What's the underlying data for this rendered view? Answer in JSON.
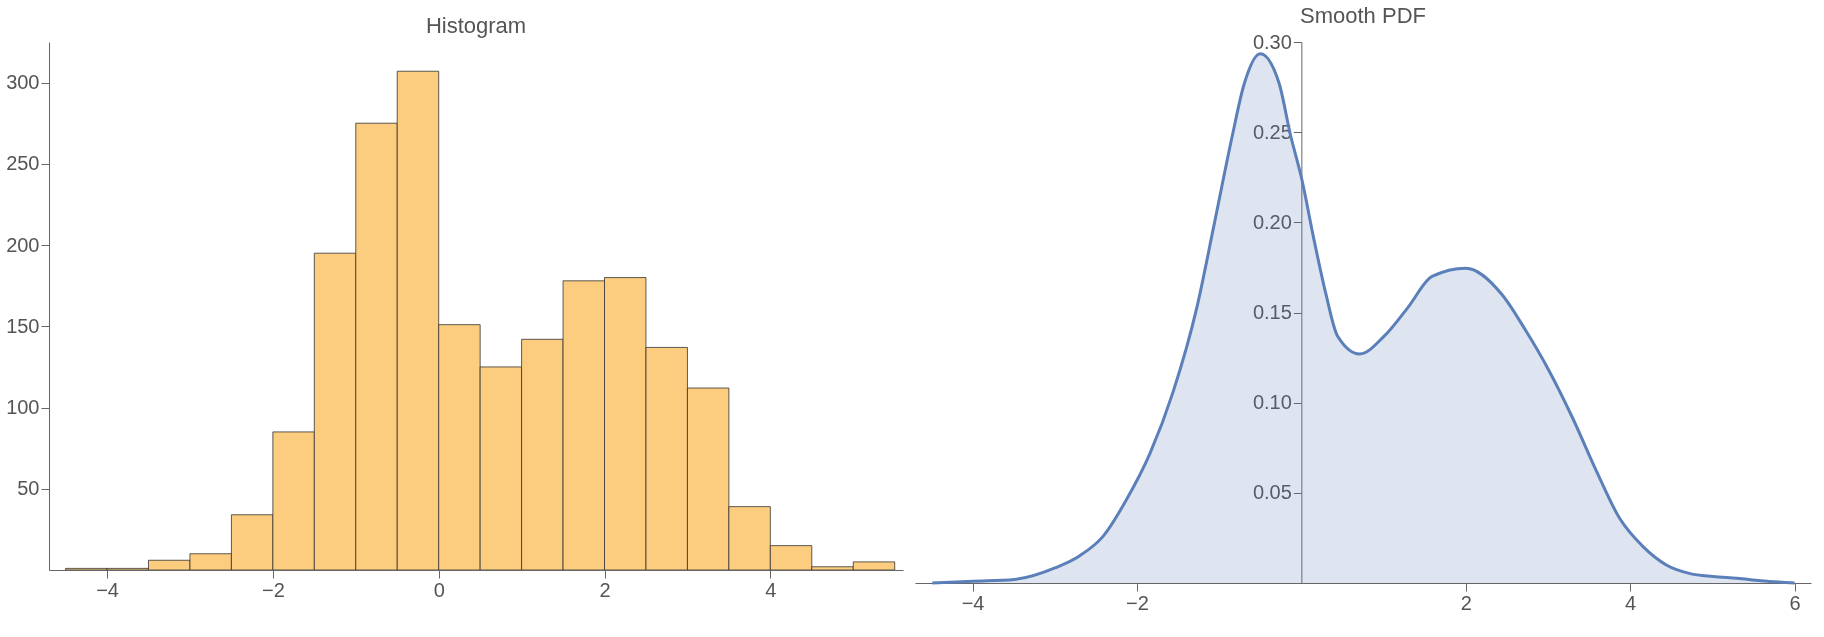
{
  "chart_data": [
    {
      "type": "histogram",
      "title": "Histogram",
      "bins": [
        -4.5,
        -4,
        -3.5,
        -3,
        -2.5,
        -2,
        -1.5,
        -1,
        -0.5,
        0,
        0.5,
        1,
        1.5,
        2,
        2.5,
        3,
        3.5,
        4,
        4.5,
        5,
        5.5
      ],
      "values": [
        1,
        1,
        6,
        10,
        34,
        85,
        195,
        275,
        307,
        151,
        125,
        142,
        178,
        180,
        137,
        112,
        39,
        15,
        2,
        5
      ],
      "color": "#fccd7e",
      "xlim": [
        -4.7,
        5.6
      ],
      "xticks": [
        -4,
        -2,
        0,
        2,
        4
      ],
      "ylim": [
        0,
        325
      ],
      "yticks": [
        50,
        100,
        150,
        200,
        250,
        300
      ],
      "grid": false
    },
    {
      "type": "area",
      "title": "Smooth PDF",
      "x": [
        -4.49,
        -3.99,
        -3.49,
        -2.99,
        -2.7,
        -2.41,
        -2.13,
        -1.84,
        -1.56,
        -1.27,
        -1.06,
        -0.84,
        -0.7,
        -0.5,
        -0.27,
        -0.13,
        0,
        0.16,
        0.3,
        0.44,
        0.71,
        1.01,
        1.3,
        1.59,
        2,
        2.44,
        2.73,
        3.01,
        3.3,
        3.59,
        3.87,
        4.16,
        4.44,
        4.73,
        5.01,
        5.3,
        5.59,
        6
      ],
      "series": [
        {
          "color": "#5b7fb9",
          "values": [
            0,
            0.001,
            0.002,
            0.0085,
            0.015,
            0.026,
            0.046,
            0.072,
            0.106,
            0.153,
            0.199,
            0.248,
            0.276,
            0.2935,
            0.277,
            0.248,
            0.225,
            0.189,
            0.16,
            0.137,
            0.127,
            0.137,
            0.153,
            0.17,
            0.1746,
            0.16,
            0.14,
            0.118,
            0.0915,
            0.062,
            0.036,
            0.02,
            0.01,
            0.0052,
            0.0036,
            0.0026,
            0.0013,
            0
          ]
        }
      ],
      "xlim": [
        -4.7,
        6.2
      ],
      "xticks": [
        -4,
        -2,
        2,
        4,
        6
      ],
      "ylim": [
        0,
        0.3
      ],
      "yticks": [
        0.05,
        {
          "value": 0.1,
          "label": "0.10"
        },
        0.15,
        {
          "value": 0.2,
          "label": "0.20"
        },
        0.25,
        {
          "value": 0.3,
          "label": "0.30"
        }
      ],
      "grid": false
    }
  ]
}
